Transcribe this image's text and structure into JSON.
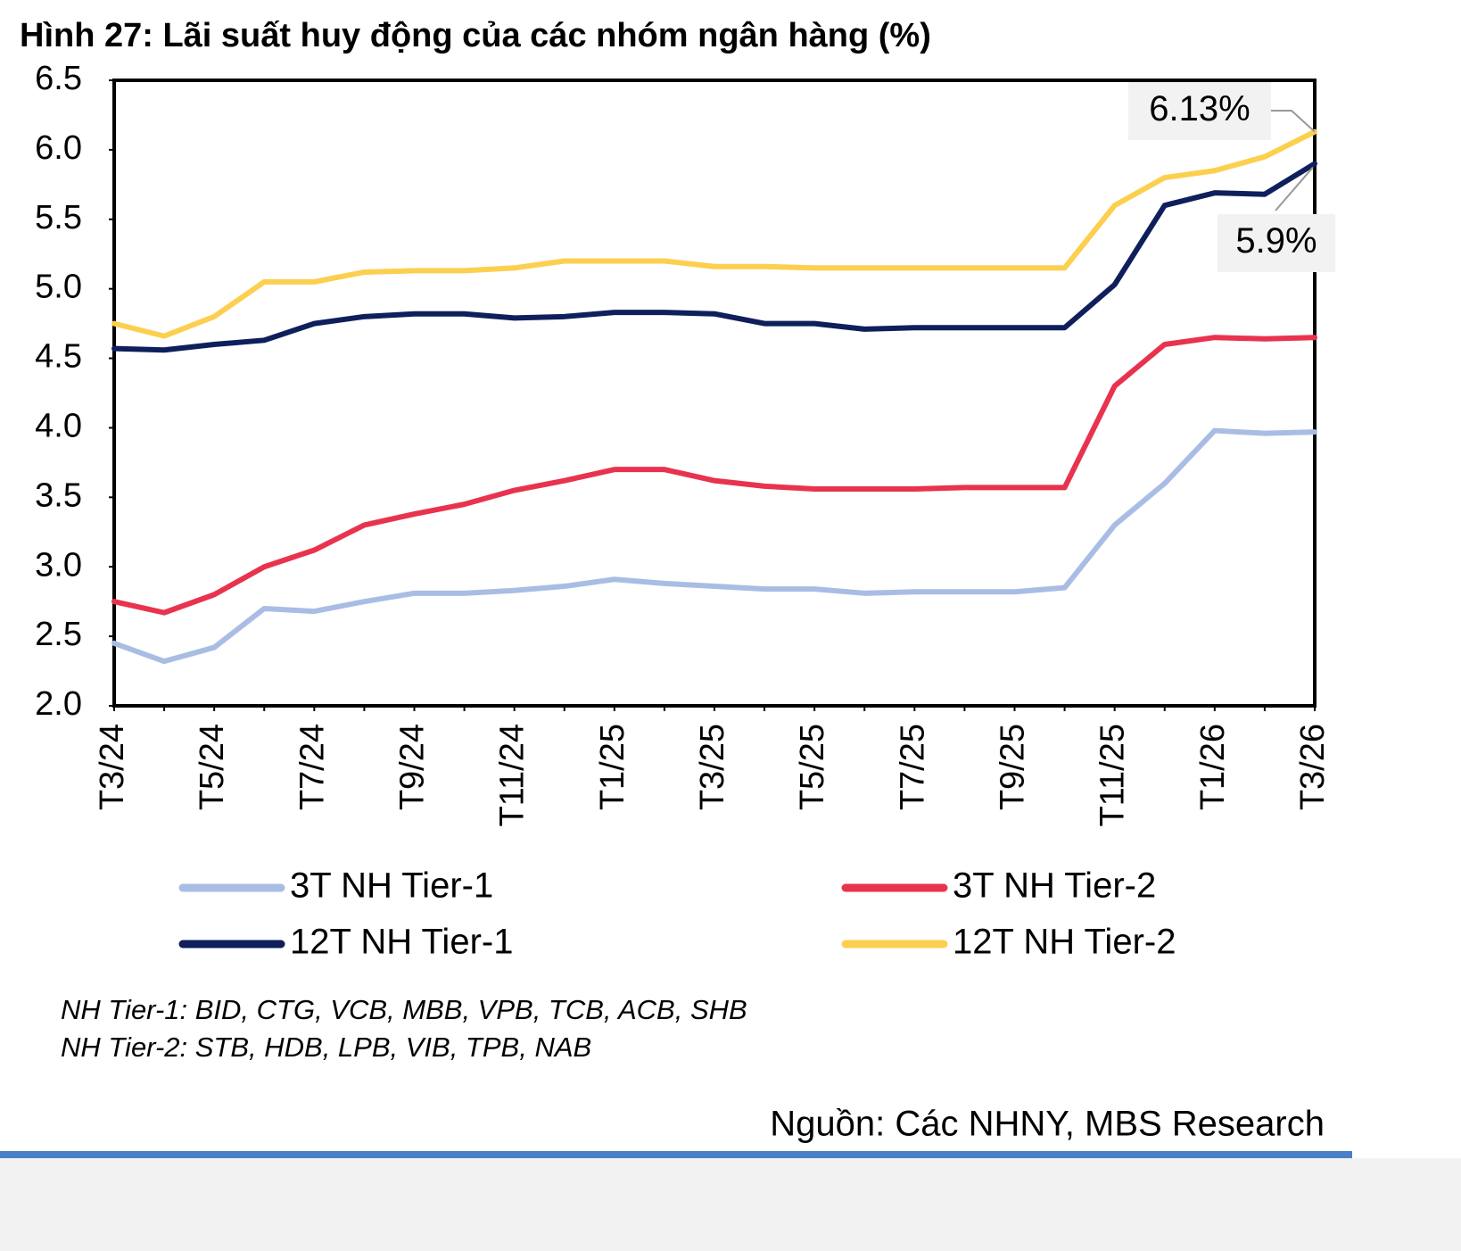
{
  "chart_data": {
    "type": "line",
    "title": "Hình 27: Lãi suất huy động của các nhóm ngân hàng (%)",
    "categories": [
      "T3/24",
      null,
      "T5/24",
      null,
      "T7/24",
      null,
      "T9/24",
      null,
      "T11/24",
      null,
      "T1/25",
      null,
      "T3/25",
      null,
      "T5/25",
      null,
      "T7/25",
      null,
      "T9/25",
      null,
      "T11/25",
      null,
      "T1/26",
      null,
      "T3/26"
    ],
    "series": [
      {
        "name": "3T NH Tier-1",
        "color": "#a9bde4",
        "values": [
          2.45,
          2.32,
          2.42,
          2.7,
          2.68,
          2.75,
          2.81,
          2.81,
          2.83,
          2.86,
          2.91,
          2.88,
          2.86,
          2.84,
          2.84,
          2.81,
          2.82,
          2.82,
          2.82,
          2.85,
          3.3,
          3.6,
          3.98,
          3.96,
          3.97
        ]
      },
      {
        "name": "3T NH Tier-2",
        "color": "#e8334f",
        "values": [
          2.75,
          2.67,
          2.8,
          3.0,
          3.12,
          3.3,
          3.38,
          3.45,
          3.55,
          3.62,
          3.7,
          3.7,
          3.62,
          3.58,
          3.56,
          3.56,
          3.56,
          3.57,
          3.57,
          3.57,
          4.3,
          4.6,
          4.65,
          4.64,
          4.65
        ]
      },
      {
        "name": "12T NH Tier-1",
        "color": "#0f1f5c",
        "values": [
          4.57,
          4.56,
          4.6,
          4.63,
          4.75,
          4.8,
          4.82,
          4.82,
          4.79,
          4.8,
          4.83,
          4.83,
          4.82,
          4.75,
          4.75,
          4.71,
          4.72,
          4.72,
          4.72,
          4.72,
          5.03,
          5.6,
          5.69,
          5.68,
          5.9
        ],
        "value_labels": [
          null,
          null,
          null,
          null,
          null,
          null,
          null,
          null,
          null,
          null,
          null,
          null,
          null,
          null,
          null,
          null,
          null,
          null,
          null,
          null,
          null,
          null,
          null,
          null,
          "5.9%"
        ]
      },
      {
        "name": "12T NH Tier-2",
        "color": "#fccf4f",
        "values": [
          4.75,
          4.66,
          4.8,
          5.05,
          5.05,
          5.12,
          5.13,
          5.13,
          5.15,
          5.2,
          5.2,
          5.2,
          5.16,
          5.16,
          5.15,
          5.15,
          5.15,
          5.15,
          5.15,
          5.15,
          5.6,
          5.8,
          5.85,
          5.95,
          6.13
        ],
        "value_labels": [
          null,
          null,
          null,
          null,
          null,
          null,
          null,
          null,
          null,
          null,
          null,
          null,
          null,
          null,
          null,
          null,
          null,
          null,
          null,
          null,
          null,
          null,
          null,
          null,
          "6.13%"
        ]
      }
    ],
    "ylim": [
      2.0,
      6.5
    ],
    "yticks": [
      {
        "value": 2.0,
        "label": "2.0"
      },
      2.5,
      {
        "value": 3.0,
        "label": "3.0"
      },
      3.5,
      {
        "value": 4.0,
        "label": "4.0"
      },
      4.5,
      {
        "value": 5.0,
        "label": "5.0"
      },
      5.5,
      {
        "value": 6.0,
        "label": "6.0"
      },
      6.5
    ],
    "notes": [
      "NH Tier-1: BID, CTG, VCB, MBB, VPB, TCB, ACB, SHB",
      "NH Tier-2: STB, HDB, LPB, VIB, TPB, NAB"
    ],
    "source": "Nguồn: Các NHNY, MBS Research"
  }
}
